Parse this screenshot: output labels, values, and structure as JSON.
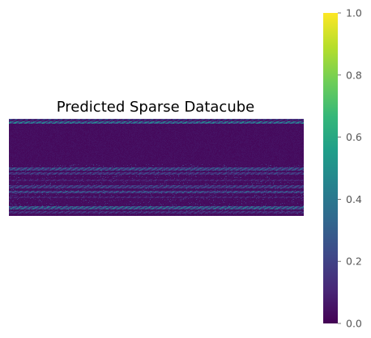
{
  "chart_data": {
    "type": "heatmap",
    "title": "Predicted Sparse Datacube",
    "xlabel": "",
    "ylabel": "",
    "axes_visible": false,
    "grid": false,
    "colormap": "viridis",
    "colormap_stops": [
      "#440154",
      "#482878",
      "#3e4989",
      "#31688e",
      "#26828e",
      "#1f9e89",
      "#35b779",
      "#6ece58",
      "#b5de2b",
      "#fde725"
    ],
    "colorbar": {
      "placement": "right",
      "range": [
        0.0,
        1.0
      ],
      "ticks": [
        0.0,
        0.2,
        0.4,
        0.6,
        0.8,
        1.0
      ],
      "tick_labels": [
        "0.0",
        "0.2",
        "0.4",
        "0.6",
        "0.8",
        "1.0"
      ]
    },
    "grid_size": {
      "rows": 120,
      "cols": 364
    },
    "background_value": 0.02,
    "bright_row_bands": [
      {
        "rows": [
          0,
          1
        ],
        "level": 0.22
      },
      {
        "rows": [
          3,
          5
        ],
        "level": 0.45
      },
      {
        "rows": [
          60,
          63
        ],
        "level": 0.3
      },
      {
        "rows": [
          66,
          68
        ],
        "level": 0.22
      },
      {
        "rows": [
          75,
          76
        ],
        "level": 0.14
      },
      {
        "rows": [
          82,
          85
        ],
        "level": 0.24
      },
      {
        "rows": [
          89,
          91
        ],
        "level": 0.3
      },
      {
        "rows": [
          96,
          97
        ],
        "level": 0.14
      },
      {
        "rows": [
          108,
          111
        ],
        "level": 0.38
      },
      {
        "rows": [
          114,
          116
        ],
        "level": 0.18
      }
    ]
  }
}
